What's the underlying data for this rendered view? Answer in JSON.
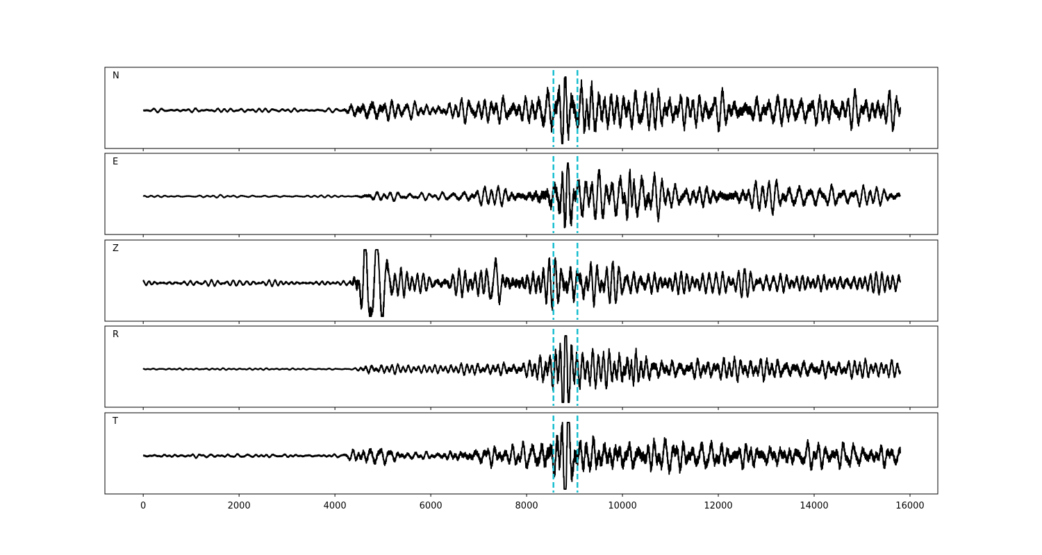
{
  "chart_data": {
    "type": "line",
    "xlabel": "",
    "ylabel": "",
    "xlim": [
      -800,
      16580
    ],
    "xticks": [
      0,
      2000,
      4000,
      6000,
      8000,
      10000,
      12000,
      14000,
      16000
    ],
    "xtick_labels": [
      "0",
      "2000",
      "4000",
      "6000",
      "8000",
      "10000",
      "12000",
      "14000",
      "16000"
    ],
    "x_range": [
      0,
      15800
    ],
    "markers": [
      8560,
      9060
    ],
    "marker_color": "#17becf",
    "trace_color": "#000000",
    "panels": [
      {
        "label": "N",
        "envelope": [
          [
            0,
            0.04
          ],
          [
            4150,
            0.04
          ],
          [
            4300,
            0.16
          ],
          [
            4800,
            0.3
          ],
          [
            5200,
            0.22
          ],
          [
            6000,
            0.12
          ],
          [
            7000,
            0.26
          ],
          [
            8000,
            0.3
          ],
          [
            8600,
            0.55
          ],
          [
            8800,
            0.75
          ],
          [
            9000,
            0.55
          ],
          [
            9400,
            0.55
          ],
          [
            10000,
            0.42
          ],
          [
            12000,
            0.35
          ],
          [
            15800,
            0.32
          ]
        ],
        "events": [
          [
            8800,
            0.95,
            1.0,
            0.09
          ],
          [
            9300,
            -0.85,
            0.9,
            0.1
          ],
          [
            9500,
            0.65,
            1.1,
            0.08
          ]
        ]
      },
      {
        "label": "E",
        "envelope": [
          [
            0,
            0.02
          ],
          [
            4400,
            0.02
          ],
          [
            4700,
            0.1
          ],
          [
            6000,
            0.06
          ],
          [
            7000,
            0.15
          ],
          [
            8000,
            0.18
          ],
          [
            8600,
            0.45
          ],
          [
            8800,
            0.8
          ],
          [
            9000,
            0.45
          ],
          [
            9500,
            0.35
          ],
          [
            10500,
            0.45
          ],
          [
            11000,
            0.25
          ],
          [
            13500,
            0.25
          ],
          [
            15800,
            0.14
          ]
        ],
        "events": [
          [
            8810,
            -0.95,
            1.1,
            0.1
          ],
          [
            10150,
            0.55,
            1.0,
            0.12
          ]
        ]
      },
      {
        "label": "Z",
        "envelope": [
          [
            0,
            0.05
          ],
          [
            4300,
            0.05
          ],
          [
            4450,
            0.4
          ],
          [
            4800,
            0.6
          ],
          [
            5300,
            0.28
          ],
          [
            6000,
            0.16
          ],
          [
            7000,
            0.32
          ],
          [
            8000,
            0.32
          ],
          [
            8600,
            0.45
          ],
          [
            9000,
            0.5
          ],
          [
            9300,
            0.4
          ],
          [
            10000,
            0.32
          ],
          [
            12000,
            0.22
          ],
          [
            15800,
            0.22
          ]
        ],
        "events": [
          [
            4850,
            1.0,
            2.2,
            0.05
          ],
          [
            4780,
            -0.85,
            2.0,
            0.05
          ],
          [
            7350,
            0.55,
            1.4,
            0.06
          ],
          [
            9200,
            -0.9,
            1.0,
            0.08
          ]
        ]
      },
      {
        "label": "R",
        "envelope": [
          [
            0,
            0.02
          ],
          [
            4400,
            0.02
          ],
          [
            4700,
            0.1
          ],
          [
            6000,
            0.06
          ],
          [
            7000,
            0.12
          ],
          [
            8000,
            0.16
          ],
          [
            8600,
            0.45
          ],
          [
            8800,
            0.8
          ],
          [
            9000,
            0.4
          ],
          [
            9500,
            0.3
          ],
          [
            10000,
            0.38
          ],
          [
            11000,
            0.24
          ],
          [
            13500,
            0.25
          ],
          [
            15800,
            0.14
          ]
        ],
        "events": [
          [
            8800,
            0.95,
            1.1,
            0.1
          ],
          [
            10150,
            -0.55,
            1.0,
            0.12
          ]
        ]
      },
      {
        "label": "T",
        "envelope": [
          [
            0,
            0.04
          ],
          [
            4150,
            0.04
          ],
          [
            4400,
            0.14
          ],
          [
            4800,
            0.22
          ],
          [
            5500,
            0.1
          ],
          [
            6000,
            0.08
          ],
          [
            7000,
            0.22
          ],
          [
            8000,
            0.26
          ],
          [
            8600,
            0.55
          ],
          [
            8800,
            0.8
          ],
          [
            9100,
            0.45
          ],
          [
            10000,
            0.4
          ],
          [
            12000,
            0.32
          ],
          [
            15800,
            0.26
          ]
        ],
        "events": [
          [
            8810,
            -1.0,
            1.1,
            0.09
          ],
          [
            9400,
            0.55,
            1.0,
            0.1
          ]
        ]
      }
    ]
  }
}
